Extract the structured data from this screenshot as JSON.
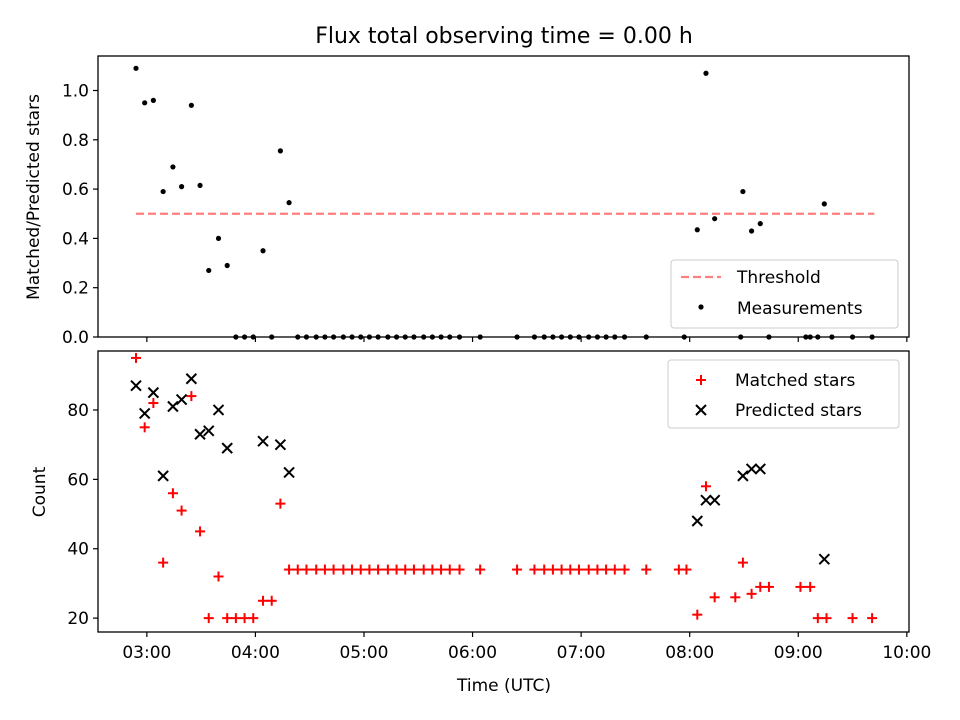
{
  "title": "Flux total observing time = 0.00 h",
  "chart_data": [
    {
      "type": "scatter",
      "panel": "top",
      "title": "Flux total observing time = 0.00 h",
      "xlabel": "",
      "ylabel": "Matched/Predicted stars",
      "xlim": [
        2.55,
        10.02
      ],
      "ylim": [
        0.0,
        1.14
      ],
      "yticks": [
        0.0,
        0.2,
        0.4,
        0.6,
        0.8,
        1.0
      ],
      "ytick_labels": [
        "0.0",
        "0.2",
        "0.4",
        "0.6",
        "0.8",
        "1.0"
      ],
      "legend_position": "lower-right",
      "threshold": {
        "name": "Threshold",
        "y": 0.5,
        "x": [
          2.9,
          9.7
        ],
        "color": "#ff7f7f",
        "style": "dashed"
      },
      "series": [
        {
          "name": "Measurements",
          "color": "#000000",
          "marker": "dot",
          "points": [
            [
              2.9,
              1.09
            ],
            [
              2.98,
              0.95
            ],
            [
              3.06,
              0.96
            ],
            [
              3.15,
              0.59
            ],
            [
              3.24,
              0.69
            ],
            [
              3.32,
              0.61
            ],
            [
              3.41,
              0.94
            ],
            [
              3.49,
              0.615
            ],
            [
              3.57,
              0.27
            ],
            [
              3.66,
              0.4
            ],
            [
              3.74,
              0.29
            ],
            [
              3.82,
              0.0
            ],
            [
              3.9,
              0.0
            ],
            [
              3.98,
              0.0
            ],
            [
              4.07,
              0.35
            ],
            [
              4.15,
              0.0
            ],
            [
              4.23,
              0.755
            ],
            [
              4.31,
              0.545
            ],
            [
              4.39,
              0.0
            ],
            [
              4.47,
              0.0
            ],
            [
              4.56,
              0.0
            ],
            [
              4.64,
              0.0
            ],
            [
              4.72,
              0.0
            ],
            [
              4.81,
              0.0
            ],
            [
              4.89,
              0.0
            ],
            [
              4.97,
              0.0
            ],
            [
              5.05,
              0.0
            ],
            [
              5.13,
              0.0
            ],
            [
              5.22,
              0.0
            ],
            [
              5.3,
              0.0
            ],
            [
              5.38,
              0.0
            ],
            [
              5.46,
              0.0
            ],
            [
              5.55,
              0.0
            ],
            [
              5.63,
              0.0
            ],
            [
              5.71,
              0.0
            ],
            [
              5.79,
              0.0
            ],
            [
              5.88,
              0.0
            ],
            [
              6.07,
              0.0
            ],
            [
              6.41,
              0.0
            ],
            [
              6.57,
              0.0
            ],
            [
              6.66,
              0.0
            ],
            [
              6.74,
              0.0
            ],
            [
              6.82,
              0.0
            ],
            [
              6.9,
              0.0
            ],
            [
              6.98,
              0.0
            ],
            [
              7.07,
              0.0
            ],
            [
              7.15,
              0.0
            ],
            [
              7.23,
              0.0
            ],
            [
              7.31,
              0.0
            ],
            [
              7.4,
              0.0
            ],
            [
              7.6,
              0.0
            ],
            [
              7.95,
              0.0
            ],
            [
              8.07,
              0.435
            ],
            [
              8.15,
              1.07
            ],
            [
              8.23,
              0.48
            ],
            [
              8.47,
              0.0
            ],
            [
              8.49,
              0.59
            ],
            [
              8.57,
              0.43
            ],
            [
              8.65,
              0.46
            ],
            [
              8.73,
              0.0
            ],
            [
              9.07,
              0.0
            ],
            [
              9.11,
              0.0
            ],
            [
              9.18,
              0.0
            ],
            [
              9.24,
              0.54
            ],
            [
              9.31,
              0.0
            ],
            [
              9.5,
              0.0
            ],
            [
              9.68,
              0.0
            ]
          ]
        }
      ]
    },
    {
      "type": "scatter",
      "panel": "bottom",
      "title": "",
      "xlabel": "Time (UTC)",
      "ylabel": "Count",
      "xlim": [
        2.55,
        10.02
      ],
      "ylim": [
        16,
        97
      ],
      "yticks": [
        20,
        40,
        60,
        80
      ],
      "ytick_labels": [
        "20",
        "40",
        "60",
        "80"
      ],
      "xticks": [
        3,
        4,
        5,
        6,
        7,
        8,
        9,
        10
      ],
      "xtick_labels": [
        "03:00",
        "04:00",
        "05:00",
        "06:00",
        "07:00",
        "08:00",
        "09:00",
        "10:00"
      ],
      "legend_position": "top-right",
      "series": [
        {
          "name": "Matched stars",
          "color": "#ff0000",
          "marker": "plus",
          "points": [
            [
              2.9,
              95
            ],
            [
              2.98,
              75
            ],
            [
              3.06,
              82
            ],
            [
              3.15,
              36
            ],
            [
              3.24,
              56
            ],
            [
              3.32,
              51
            ],
            [
              3.41,
              84
            ],
            [
              3.49,
              45
            ],
            [
              3.57,
              20
            ],
            [
              3.66,
              32
            ],
            [
              3.74,
              20
            ],
            [
              3.82,
              20
            ],
            [
              3.9,
              20
            ],
            [
              3.98,
              20
            ],
            [
              4.07,
              25
            ],
            [
              4.15,
              25
            ],
            [
              4.23,
              53
            ],
            [
              4.31,
              34
            ],
            [
              4.39,
              34
            ],
            [
              4.47,
              34
            ],
            [
              4.56,
              34
            ],
            [
              4.64,
              34
            ],
            [
              4.72,
              34
            ],
            [
              4.81,
              34
            ],
            [
              4.89,
              34
            ],
            [
              4.97,
              34
            ],
            [
              5.05,
              34
            ],
            [
              5.13,
              34
            ],
            [
              5.22,
              34
            ],
            [
              5.3,
              34
            ],
            [
              5.38,
              34
            ],
            [
              5.46,
              34
            ],
            [
              5.55,
              34
            ],
            [
              5.63,
              34
            ],
            [
              5.71,
              34
            ],
            [
              5.79,
              34
            ],
            [
              5.88,
              34
            ],
            [
              6.07,
              34
            ],
            [
              6.41,
              34
            ],
            [
              6.57,
              34
            ],
            [
              6.66,
              34
            ],
            [
              6.74,
              34
            ],
            [
              6.82,
              34
            ],
            [
              6.9,
              34
            ],
            [
              6.98,
              34
            ],
            [
              7.07,
              34
            ],
            [
              7.15,
              34
            ],
            [
              7.23,
              34
            ],
            [
              7.31,
              34
            ],
            [
              7.4,
              34
            ],
            [
              7.6,
              34
            ],
            [
              7.9,
              34
            ],
            [
              7.97,
              34
            ],
            [
              8.07,
              21
            ],
            [
              8.15,
              58
            ],
            [
              8.23,
              26
            ],
            [
              8.42,
              26
            ],
            [
              8.49,
              36
            ],
            [
              8.57,
              27
            ],
            [
              8.65,
              29
            ],
            [
              8.73,
              29
            ],
            [
              9.02,
              29
            ],
            [
              9.11,
              29
            ],
            [
              9.18,
              20
            ],
            [
              9.26,
              20
            ],
            [
              9.5,
              20
            ],
            [
              9.68,
              20
            ]
          ]
        },
        {
          "name": "Predicted stars",
          "color": "#000000",
          "marker": "x",
          "points": [
            [
              2.9,
              87
            ],
            [
              2.98,
              79
            ],
            [
              3.06,
              85
            ],
            [
              3.15,
              61
            ],
            [
              3.24,
              81
            ],
            [
              3.32,
              83
            ],
            [
              3.41,
              89
            ],
            [
              3.49,
              73
            ],
            [
              3.57,
              74
            ],
            [
              3.66,
              80
            ],
            [
              3.74,
              69
            ],
            [
              4.07,
              71
            ],
            [
              4.23,
              70
            ],
            [
              4.31,
              62
            ],
            [
              8.07,
              48
            ],
            [
              8.15,
              54
            ],
            [
              8.23,
              54
            ],
            [
              8.49,
              61
            ],
            [
              8.57,
              63
            ],
            [
              8.65,
              63
            ],
            [
              9.24,
              37
            ]
          ]
        }
      ]
    }
  ]
}
